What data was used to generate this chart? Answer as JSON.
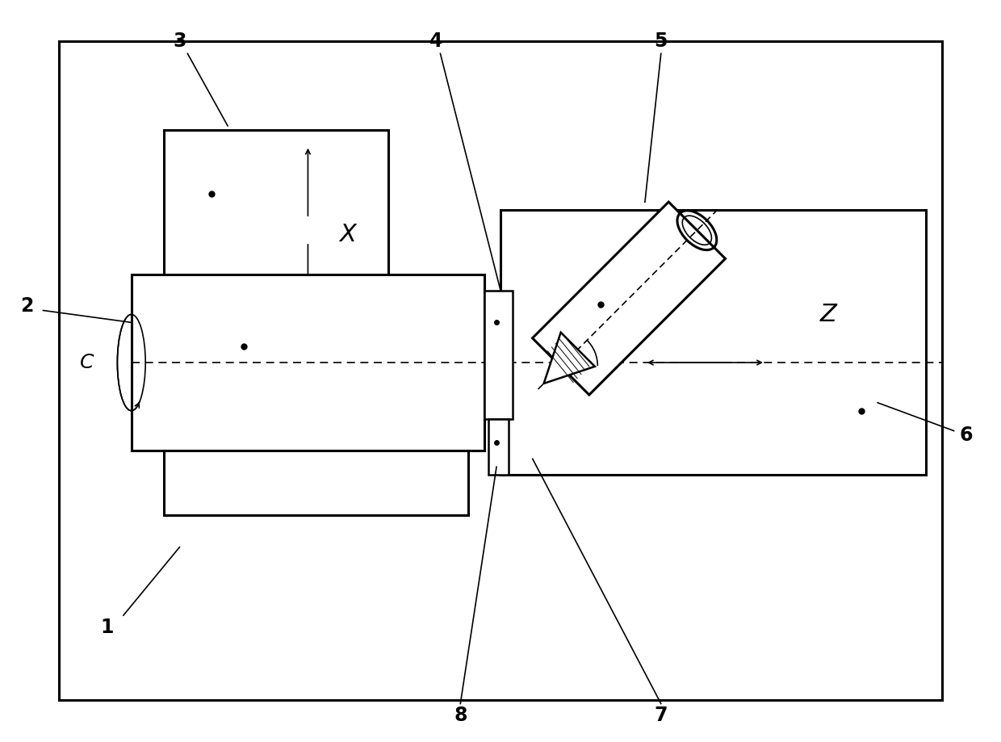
{
  "bg_color": "#ffffff",
  "line_color": "#000000",
  "fig_width": 12.4,
  "fig_height": 9.19,
  "dpi": 100
}
